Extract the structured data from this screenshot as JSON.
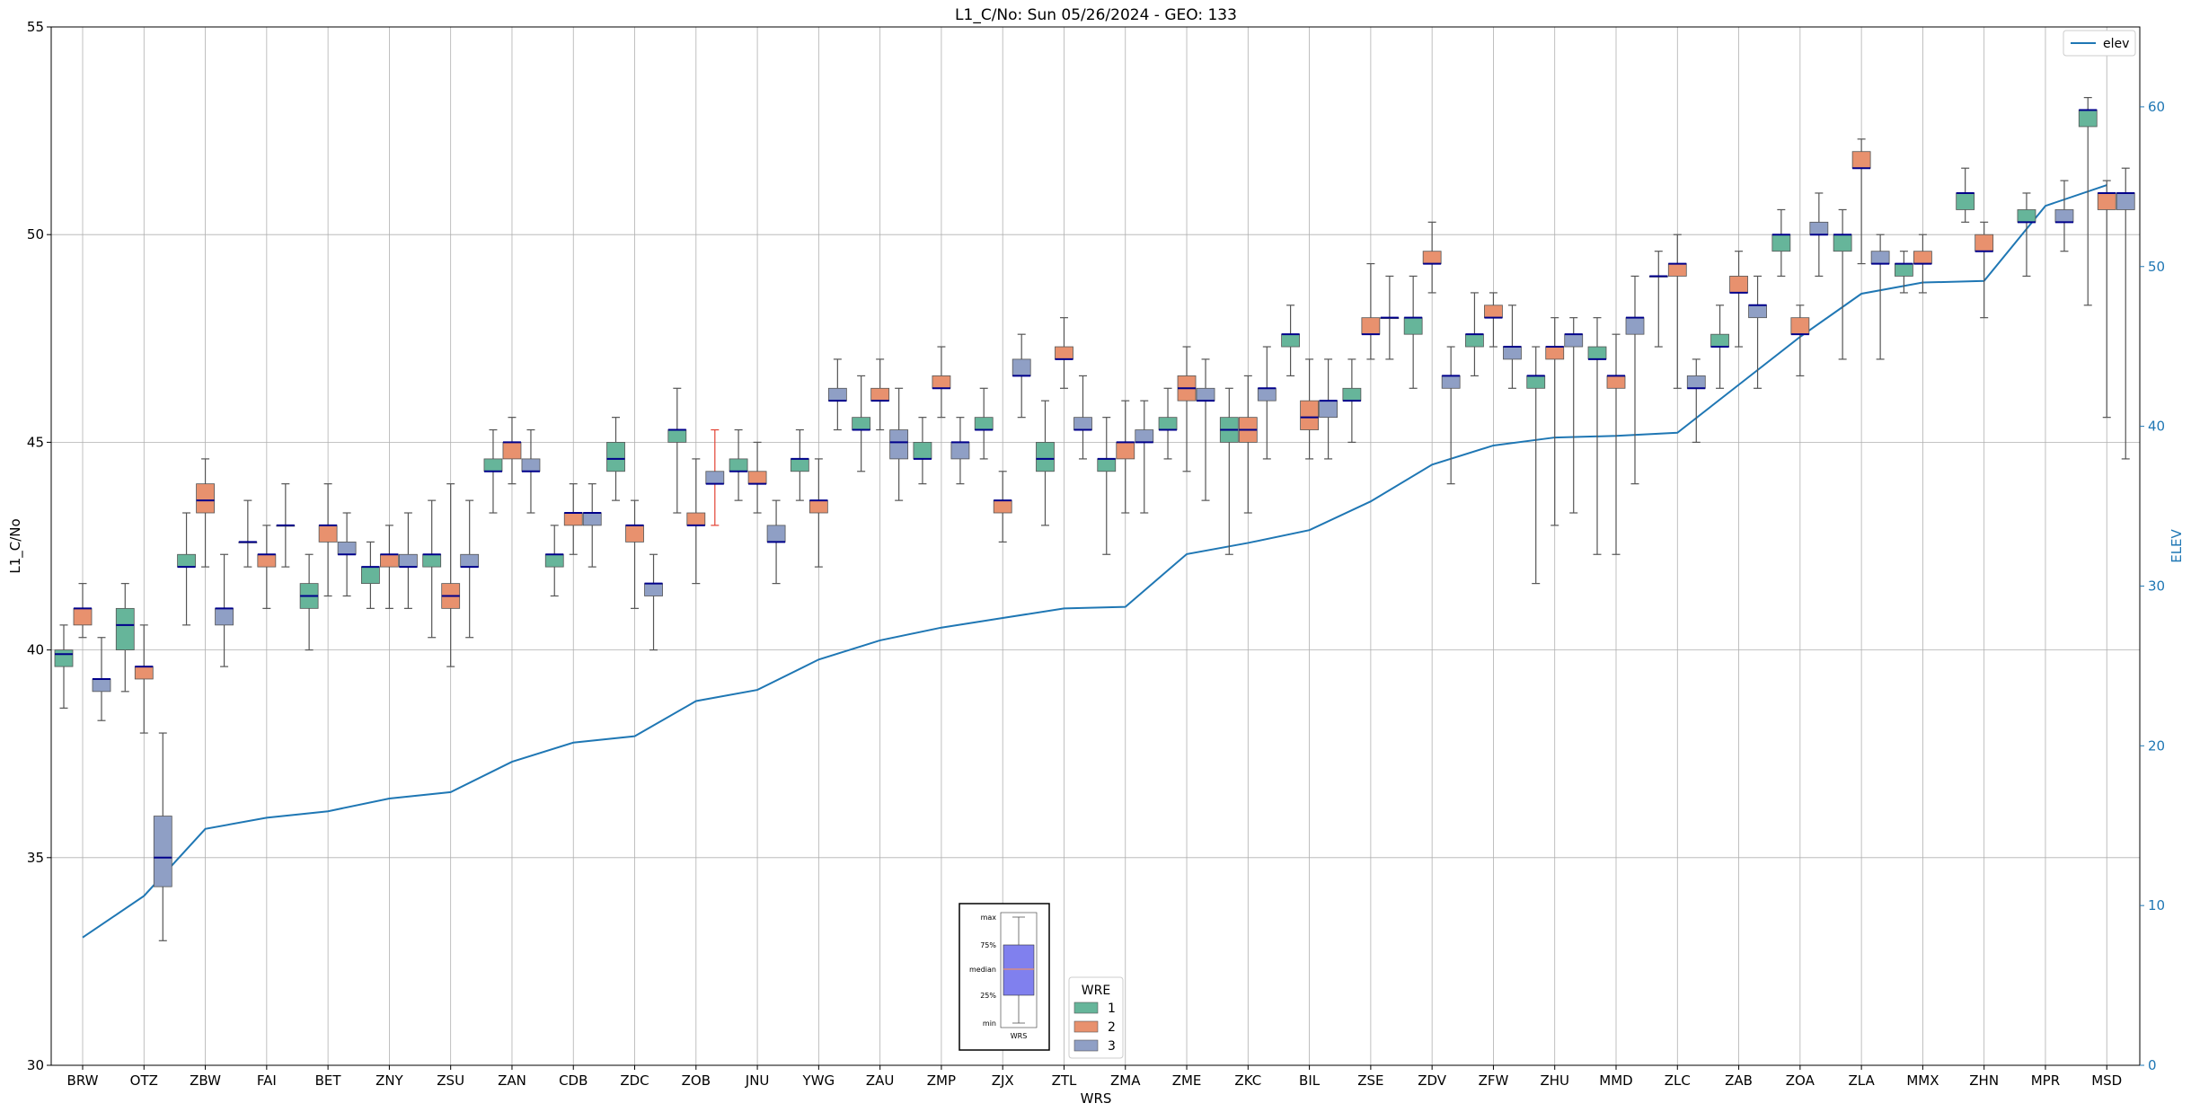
{
  "chart_data": {
    "type": "box",
    "title": "L1_C/No: Sun 05/26/2024 - GEO: 133",
    "xlabel": "WRS",
    "ylabel": "L1_C/No",
    "y2label": "ELEV",
    "ylim": [
      30,
      55
    ],
    "y2lim": [
      0,
      65
    ],
    "yticks": [
      30,
      35,
      40,
      45,
      50,
      55
    ],
    "y2ticks": [
      0,
      10,
      20,
      30,
      40,
      50,
      60
    ],
    "grid": true,
    "categories": [
      "BRW",
      "OTZ",
      "ZBW",
      "FAI",
      "BET",
      "ZNY",
      "ZSU",
      "ZAN",
      "CDB",
      "ZDC",
      "ZOB",
      "JNU",
      "YWG",
      "ZAU",
      "ZMP",
      "ZJX",
      "ZTL",
      "ZMA",
      "ZME",
      "ZKC",
      "BIL",
      "ZSE",
      "ZDV",
      "ZFW",
      "ZHU",
      "MMD",
      "ZLC",
      "ZAB",
      "ZOA",
      "ZLA",
      "MMX",
      "ZHN",
      "MPR",
      "MSD"
    ],
    "colors": {
      "1": "#66b59a",
      "2": "#e8916e",
      "3": "#8f9fc5",
      "median": "#00008b",
      "whisker": "#555555",
      "elev": "#1f77b4",
      "red_whisker": "#e34234"
    },
    "legend_boxes": {
      "title": "WRE",
      "entries": [
        "1",
        "2",
        "3"
      ],
      "placement": "bottom-center"
    },
    "legend_line": {
      "entries": [
        "elev"
      ],
      "placement": "top-right"
    },
    "inset_key": {
      "labels": [
        "max",
        "75%",
        "median",
        "25%",
        "min"
      ],
      "xlabel": "WRS"
    },
    "elev_series": {
      "name": "elev",
      "values": [
        8,
        10.6,
        14.8,
        15.5,
        15.9,
        16.7,
        17.1,
        19,
        20.2,
        20.6,
        22.8,
        23.5,
        25.4,
        26.6,
        27.4,
        28,
        28.6,
        28.7,
        32,
        32.7,
        33.5,
        35.3,
        37.6,
        38.8,
        39.3,
        39.4,
        39.6,
        42.6,
        45.6,
        48.3,
        49,
        49.1,
        53.8,
        55.1
      ]
    },
    "boxes": [
      {
        "wrs": "BRW",
        "wre": 1,
        "min": 38.6,
        "q1": 39.6,
        "median": 39.9,
        "q3": 40,
        "max": 40.6
      },
      {
        "wrs": "BRW",
        "wre": 2,
        "min": 40.3,
        "q1": 40.6,
        "median": 41,
        "q3": 41,
        "max": 41.6
      },
      {
        "wrs": "BRW",
        "wre": 3,
        "min": 38.3,
        "q1": 39,
        "median": 39.3,
        "q3": 39.3,
        "max": 40.3
      },
      {
        "wrs": "OTZ",
        "wre": 1,
        "min": 39,
        "q1": 40,
        "median": 40.6,
        "q3": 41,
        "max": 41.6
      },
      {
        "wrs": "OTZ",
        "wre": 2,
        "min": 38,
        "q1": 39.3,
        "median": 39.6,
        "q3": 39.6,
        "max": 40.6
      },
      {
        "wrs": "OTZ",
        "wre": 3,
        "min": 33,
        "q1": 34.3,
        "median": 35,
        "q3": 36,
        "max": 38
      },
      {
        "wrs": "ZBW",
        "wre": 1,
        "min": 40.6,
        "q1": 42,
        "median": 42,
        "q3": 42.3,
        "max": 43.3
      },
      {
        "wrs": "ZBW",
        "wre": 2,
        "min": 42,
        "q1": 43.3,
        "median": 43.6,
        "q3": 44,
        "max": 44.6
      },
      {
        "wrs": "ZBW",
        "wre": 3,
        "min": 39.6,
        "q1": 40.6,
        "median": 41,
        "q3": 41,
        "max": 42.3
      },
      {
        "wrs": "FAI",
        "wre": 1,
        "min": 42,
        "q1": 42.6,
        "median": 42.6,
        "q3": 42.6,
        "max": 43.6
      },
      {
        "wrs": "FAI",
        "wre": 2,
        "min": 41,
        "q1": 42,
        "median": 42.3,
        "q3": 42.3,
        "max": 43
      },
      {
        "wrs": "FAI",
        "wre": 3,
        "min": 42,
        "q1": 43,
        "median": 43,
        "q3": 43,
        "max": 44
      },
      {
        "wrs": "BET",
        "wre": 1,
        "min": 40,
        "q1": 41,
        "median": 41.3,
        "q3": 41.6,
        "max": 42.3
      },
      {
        "wrs": "BET",
        "wre": 2,
        "min": 41.3,
        "q1": 42.6,
        "median": 43,
        "q3": 43,
        "max": 44
      },
      {
        "wrs": "BET",
        "wre": 3,
        "min": 41.3,
        "q1": 42.3,
        "median": 42.3,
        "q3": 42.6,
        "max": 43.3
      },
      {
        "wrs": "ZNY",
        "wre": 1,
        "min": 41,
        "q1": 41.6,
        "median": 42,
        "q3": 42,
        "max": 42.6
      },
      {
        "wrs": "ZNY",
        "wre": 2,
        "min": 41,
        "q1": 42,
        "median": 42.3,
        "q3": 42.3,
        "max": 43
      },
      {
        "wrs": "ZNY",
        "wre": 3,
        "min": 41,
        "q1": 42,
        "median": 42,
        "q3": 42.3,
        "max": 43.3
      },
      {
        "wrs": "ZSU",
        "wre": 1,
        "min": 40.3,
        "q1": 42,
        "median": 42.3,
        "q3": 42.3,
        "max": 43.6
      },
      {
        "wrs": "ZSU",
        "wre": 2,
        "min": 39.6,
        "q1": 41,
        "median": 41.3,
        "q3": 41.6,
        "max": 44
      },
      {
        "wrs": "ZSU",
        "wre": 3,
        "min": 40.3,
        "q1": 42,
        "median": 42,
        "q3": 42.3,
        "max": 43.6
      },
      {
        "wrs": "ZAN",
        "wre": 1,
        "min": 43.3,
        "q1": 44.3,
        "median": 44.3,
        "q3": 44.6,
        "max": 45.3
      },
      {
        "wrs": "ZAN",
        "wre": 2,
        "min": 44,
        "q1": 44.6,
        "median": 45,
        "q3": 45,
        "max": 45.6
      },
      {
        "wrs": "ZAN",
        "wre": 3,
        "min": 43.3,
        "q1": 44.3,
        "median": 44.3,
        "q3": 44.6,
        "max": 45.3
      },
      {
        "wrs": "CDB",
        "wre": 1,
        "min": 41.3,
        "q1": 42,
        "median": 42.3,
        "q3": 42.3,
        "max": 43
      },
      {
        "wrs": "CDB",
        "wre": 2,
        "min": 42.3,
        "q1": 43,
        "median": 43.3,
        "q3": 43.3,
        "max": 44
      },
      {
        "wrs": "CDB",
        "wre": 3,
        "min": 42,
        "q1": 43,
        "median": 43.3,
        "q3": 43.3,
        "max": 44
      },
      {
        "wrs": "ZDC",
        "wre": 1,
        "min": 43.6,
        "q1": 44.3,
        "median": 44.6,
        "q3": 45,
        "max": 45.6
      },
      {
        "wrs": "ZDC",
        "wre": 2,
        "min": 41,
        "q1": 42.6,
        "median": 43,
        "q3": 43,
        "max": 43.6
      },
      {
        "wrs": "ZDC",
        "wre": 3,
        "min": 40,
        "q1": 41.3,
        "median": 41.6,
        "q3": 41.6,
        "max": 42.3
      },
      {
        "wrs": "ZOB",
        "wre": 1,
        "min": 43.3,
        "q1": 45,
        "median": 45.3,
        "q3": 45.3,
        "max": 46.3
      },
      {
        "wrs": "ZOB",
        "wre": 2,
        "min": 41.6,
        "q1": 43,
        "median": 43,
        "q3": 43.3,
        "max": 44.6
      },
      {
        "wrs": "ZOB",
        "wre": 3,
        "min": 43,
        "q1": 44,
        "median": 44,
        "q3": 44.3,
        "max": 45.3,
        "red": true
      },
      {
        "wrs": "JNU",
        "wre": 1,
        "min": 43.6,
        "q1": 44.3,
        "median": 44.3,
        "q3": 44.6,
        "max": 45.3
      },
      {
        "wrs": "JNU",
        "wre": 2,
        "min": 43.3,
        "q1": 44,
        "median": 44,
        "q3": 44.3,
        "max": 45
      },
      {
        "wrs": "JNU",
        "wre": 3,
        "min": 41.6,
        "q1": 42.6,
        "median": 42.6,
        "q3": 43,
        "max": 43.6
      },
      {
        "wrs": "YWG",
        "wre": 1,
        "min": 43.6,
        "q1": 44.3,
        "median": 44.6,
        "q3": 44.6,
        "max": 45.3
      },
      {
        "wrs": "YWG",
        "wre": 2,
        "min": 42,
        "q1": 43.3,
        "median": 43.6,
        "q3": 43.6,
        "max": 44.6
      },
      {
        "wrs": "YWG",
        "wre": 3,
        "min": 45.3,
        "q1": 46,
        "median": 46,
        "q3": 46.3,
        "max": 47
      },
      {
        "wrs": "ZAU",
        "wre": 1,
        "min": 44.3,
        "q1": 45.3,
        "median": 45.3,
        "q3": 45.6,
        "max": 46.6
      },
      {
        "wrs": "ZAU",
        "wre": 2,
        "min": 45.3,
        "q1": 46,
        "median": 46,
        "q3": 46.3,
        "max": 47
      },
      {
        "wrs": "ZAU",
        "wre": 3,
        "min": 43.6,
        "q1": 44.6,
        "median": 45,
        "q3": 45.3,
        "max": 46.3
      },
      {
        "wrs": "ZMP",
        "wre": 1,
        "min": 44,
        "q1": 44.6,
        "median": 44.6,
        "q3": 45,
        "max": 45.6
      },
      {
        "wrs": "ZMP",
        "wre": 2,
        "min": 45.6,
        "q1": 46.3,
        "median": 46.3,
        "q3": 46.6,
        "max": 47.3
      },
      {
        "wrs": "ZMP",
        "wre": 3,
        "min": 44,
        "q1": 44.6,
        "median": 45,
        "q3": 45,
        "max": 45.6
      },
      {
        "wrs": "ZJX",
        "wre": 1,
        "min": 44.6,
        "q1": 45.3,
        "median": 45.3,
        "q3": 45.6,
        "max": 46.3
      },
      {
        "wrs": "ZJX",
        "wre": 2,
        "min": 42.6,
        "q1": 43.3,
        "median": 43.6,
        "q3": 43.6,
        "max": 44.3
      },
      {
        "wrs": "ZJX",
        "wre": 3,
        "min": 45.6,
        "q1": 46.6,
        "median": 46.6,
        "q3": 47,
        "max": 47.6
      },
      {
        "wrs": "ZTL",
        "wre": 1,
        "min": 43,
        "q1": 44.3,
        "median": 44.6,
        "q3": 45,
        "max": 46
      },
      {
        "wrs": "ZTL",
        "wre": 2,
        "min": 46.3,
        "q1": 47,
        "median": 47,
        "q3": 47.3,
        "max": 48
      },
      {
        "wrs": "ZTL",
        "wre": 3,
        "min": 44.6,
        "q1": 45.3,
        "median": 45.3,
        "q3": 45.6,
        "max": 46.6
      },
      {
        "wrs": "ZMA",
        "wre": 1,
        "min": 42.3,
        "q1": 44.3,
        "median": 44.6,
        "q3": 44.6,
        "max": 45.6
      },
      {
        "wrs": "ZMA",
        "wre": 2,
        "min": 43.3,
        "q1": 44.6,
        "median": 45,
        "q3": 45,
        "max": 46
      },
      {
        "wrs": "ZMA",
        "wre": 3,
        "min": 43.3,
        "q1": 45,
        "median": 45,
        "q3": 45.3,
        "max": 46
      },
      {
        "wrs": "ZME",
        "wre": 1,
        "min": 44.6,
        "q1": 45.3,
        "median": 45.3,
        "q3": 45.6,
        "max": 46.3
      },
      {
        "wrs": "ZME",
        "wre": 2,
        "min": 44.3,
        "q1": 46,
        "median": 46.3,
        "q3": 46.6,
        "max": 47.3
      },
      {
        "wrs": "ZME",
        "wre": 3,
        "min": 43.6,
        "q1": 46,
        "median": 46,
        "q3": 46.3,
        "max": 47
      },
      {
        "wrs": "ZKC",
        "wre": 1,
        "min": 42.3,
        "q1": 45,
        "median": 45.3,
        "q3": 45.6,
        "max": 46.3
      },
      {
        "wrs": "ZKC",
        "wre": 2,
        "min": 43.3,
        "q1": 45,
        "median": 45.3,
        "q3": 45.6,
        "max": 46.6
      },
      {
        "wrs": "ZKC",
        "wre": 3,
        "min": 44.6,
        "q1": 46,
        "median": 46.3,
        "q3": 46.3,
        "max": 47.3
      },
      {
        "wrs": "BIL",
        "wre": 1,
        "min": 46.6,
        "q1": 47.3,
        "median": 47.6,
        "q3": 47.6,
        "max": 48.3
      },
      {
        "wrs": "BIL",
        "wre": 2,
        "min": 44.6,
        "q1": 45.3,
        "median": 45.6,
        "q3": 46,
        "max": 47
      },
      {
        "wrs": "BIL",
        "wre": 3,
        "min": 44.6,
        "q1": 45.6,
        "median": 46,
        "q3": 46,
        "max": 47
      },
      {
        "wrs": "ZSE",
        "wre": 1,
        "min": 45,
        "q1": 46,
        "median": 46,
        "q3": 46.3,
        "max": 47
      },
      {
        "wrs": "ZSE",
        "wre": 2,
        "min": 47,
        "q1": 47.6,
        "median": 47.6,
        "q3": 48,
        "max": 49.3
      },
      {
        "wrs": "ZSE",
        "wre": 3,
        "min": 47,
        "q1": 48,
        "median": 48,
        "q3": 48,
        "max": 49
      },
      {
        "wrs": "ZDV",
        "wre": 1,
        "min": 46.3,
        "q1": 47.6,
        "median": 48,
        "q3": 48,
        "max": 49
      },
      {
        "wrs": "ZDV",
        "wre": 2,
        "min": 48.6,
        "q1": 49.3,
        "median": 49.3,
        "q3": 49.6,
        "max": 50.3
      },
      {
        "wrs": "ZDV",
        "wre": 3,
        "min": 44,
        "q1": 46.3,
        "median": 46.6,
        "q3": 46.6,
        "max": 47.3
      },
      {
        "wrs": "ZFW",
        "wre": 1,
        "min": 46.6,
        "q1": 47.3,
        "median": 47.6,
        "q3": 47.6,
        "max": 48.6
      },
      {
        "wrs": "ZFW",
        "wre": 2,
        "min": 47.3,
        "q1": 48,
        "median": 48,
        "q3": 48.3,
        "max": 48.6
      },
      {
        "wrs": "ZFW",
        "wre": 3,
        "min": 46.3,
        "q1": 47,
        "median": 47.3,
        "q3": 47.3,
        "max": 48.3
      },
      {
        "wrs": "ZHU",
        "wre": 1,
        "min": 41.6,
        "q1": 46.3,
        "median": 46.6,
        "q3": 46.6,
        "max": 47.3
      },
      {
        "wrs": "ZHU",
        "wre": 2,
        "min": 43,
        "q1": 47,
        "median": 47.3,
        "q3": 47.3,
        "max": 48
      },
      {
        "wrs": "ZHU",
        "wre": 3,
        "min": 43.3,
        "q1": 47.3,
        "median": 47.6,
        "q3": 47.6,
        "max": 48
      },
      {
        "wrs": "MMD",
        "wre": 1,
        "min": 42.3,
        "q1": 47,
        "median": 47,
        "q3": 47.3,
        "max": 48
      },
      {
        "wrs": "MMD",
        "wre": 2,
        "min": 42.3,
        "q1": 46.3,
        "median": 46.6,
        "q3": 46.6,
        "max": 47.6
      },
      {
        "wrs": "MMD",
        "wre": 3,
        "min": 44,
        "q1": 47.6,
        "median": 48,
        "q3": 48,
        "max": 49
      },
      {
        "wrs": "ZLC",
        "wre": 1,
        "min": 47.3,
        "q1": 49,
        "median": 49,
        "q3": 49,
        "max": 49.6
      },
      {
        "wrs": "ZLC",
        "wre": 2,
        "min": 46.3,
        "q1": 49,
        "median": 49.3,
        "q3": 49.3,
        "max": 50
      },
      {
        "wrs": "ZLC",
        "wre": 3,
        "min": 45,
        "q1": 46.3,
        "median": 46.3,
        "q3": 46.6,
        "max": 47
      },
      {
        "wrs": "ZAB",
        "wre": 1,
        "min": 46.3,
        "q1": 47.3,
        "median": 47.3,
        "q3": 47.6,
        "max": 48.3
      },
      {
        "wrs": "ZAB",
        "wre": 2,
        "min": 47.3,
        "q1": 48.6,
        "median": 48.6,
        "q3": 49,
        "max": 49.6
      },
      {
        "wrs": "ZAB",
        "wre": 3,
        "min": 46.3,
        "q1": 48,
        "median": 48.3,
        "q3": 48.3,
        "max": 49
      },
      {
        "wrs": "ZOA",
        "wre": 1,
        "min": 49,
        "q1": 49.6,
        "median": 50,
        "q3": 50,
        "max": 50.6
      },
      {
        "wrs": "ZOA",
        "wre": 2,
        "min": 46.6,
        "q1": 47.6,
        "median": 47.6,
        "q3": 48,
        "max": 48.3
      },
      {
        "wrs": "ZOA",
        "wre": 3,
        "min": 49,
        "q1": 50,
        "median": 50,
        "q3": 50.3,
        "max": 51
      },
      {
        "wrs": "ZLA",
        "wre": 1,
        "min": 47,
        "q1": 49.6,
        "median": 50,
        "q3": 50,
        "max": 50.6
      },
      {
        "wrs": "ZLA",
        "wre": 2,
        "min": 49.3,
        "q1": 51.6,
        "median": 51.6,
        "q3": 52,
        "max": 52.3
      },
      {
        "wrs": "ZLA",
        "wre": 3,
        "min": 47,
        "q1": 49.3,
        "median": 49.3,
        "q3": 49.6,
        "max": 50
      },
      {
        "wrs": "MMX",
        "wre": 1,
        "min": 48.6,
        "q1": 49,
        "median": 49.3,
        "q3": 49.3,
        "max": 49.6
      },
      {
        "wrs": "MMX",
        "wre": 2,
        "min": 48.6,
        "q1": 49.3,
        "median": 49.3,
        "q3": 49.6,
        "max": 50
      },
      {
        "wrs": "ZHN",
        "wre": 1,
        "min": 50.3,
        "q1": 50.6,
        "median": 51,
        "q3": 51,
        "max": 51.6
      },
      {
        "wrs": "ZHN",
        "wre": 2,
        "min": 48,
        "q1": 49.6,
        "median": 49.6,
        "q3": 50,
        "max": 50.3
      },
      {
        "wrs": "MPR",
        "wre": 1,
        "min": 49,
        "q1": 50.3,
        "median": 50.3,
        "q3": 50.6,
        "max": 51
      },
      {
        "wrs": "MPR",
        "wre": 3,
        "min": 49.6,
        "q1": 50.3,
        "median": 50.3,
        "q3": 50.6,
        "max": 51.3
      },
      {
        "wrs": "MSD",
        "wre": 1,
        "min": 48.3,
        "q1": 52.6,
        "median": 53,
        "q3": 53,
        "max": 53.3
      },
      {
        "wrs": "MSD",
        "wre": 2,
        "min": 45.6,
        "q1": 50.6,
        "median": 51,
        "q3": 51,
        "max": 51.3
      },
      {
        "wrs": "MSD",
        "wre": 3,
        "min": 44.6,
        "q1": 50.6,
        "median": 51,
        "q3": 51,
        "max": 51.6
      }
    ]
  }
}
